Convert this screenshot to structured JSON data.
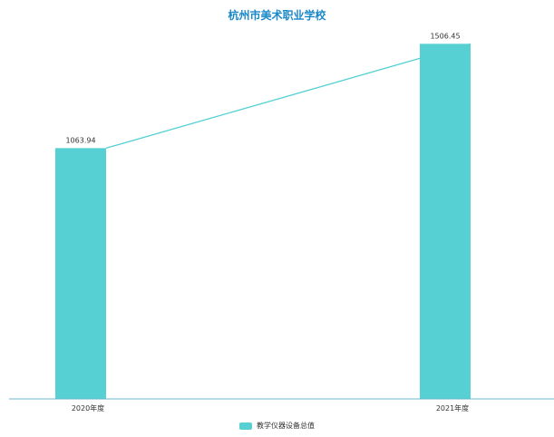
{
  "title": "杭州市美术职业学校",
  "colors": {
    "bar": "#56d0d3",
    "line": "#56d0d3",
    "axis": "#6bb7c9",
    "title": "#1a88c9",
    "label": "#333333"
  },
  "chart_data": {
    "type": "bar",
    "title": "杭州市美术职业学校",
    "categories": [
      "2020年度",
      "2021年度"
    ],
    "series": [
      {
        "name": "教学仪器设备总值",
        "values": [
          1063.94,
          1506.45
        ]
      }
    ],
    "overlay_line": true,
    "data_labels": [
      "1063.94",
      "1506.45"
    ],
    "ylim": [
      0,
      1600
    ],
    "grid": false,
    "legend": "bottom-center"
  }
}
